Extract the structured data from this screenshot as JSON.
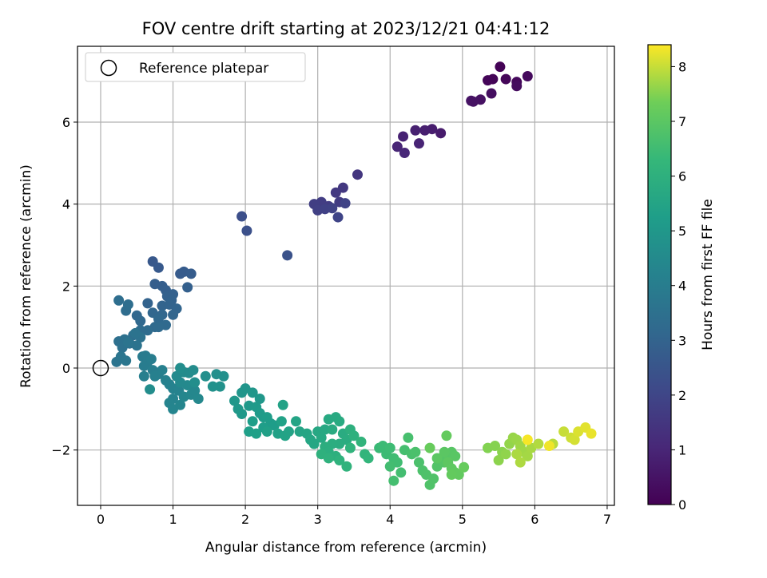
{
  "chart_data": {
    "type": "scatter",
    "title": "FOV centre drift starting at 2023/12/21 04:41:12",
    "xlabel": "Angular distance from reference (arcmin)",
    "ylabel": "Rotation from reference (arcmin)",
    "xlim": [
      -0.32,
      7.1
    ],
    "ylim": [
      -3.35,
      7.85
    ],
    "xticks": [
      0,
      1,
      2,
      3,
      4,
      5,
      6,
      7
    ],
    "yticks": [
      -2,
      0,
      2,
      4,
      6
    ],
    "grid": true,
    "colormap": "viridis",
    "colorbar": {
      "label": "Hours from first FF file",
      "min": 0,
      "max": 8.4,
      "ticks": [
        0,
        1,
        2,
        3,
        4,
        5,
        6,
        7,
        8
      ]
    },
    "legend": {
      "position": "top-left",
      "entries": [
        {
          "label": "Reference platepar",
          "marker": "open-circle"
        }
      ]
    },
    "reference_point": {
      "x": 0,
      "y": 0
    },
    "points": [
      [
        5.52,
        7.35,
        0.05
      ],
      [
        5.42,
        7.05,
        0.1
      ],
      [
        5.6,
        7.05,
        0.15
      ],
      [
        5.35,
        7.02,
        0.12
      ],
      [
        5.75,
        6.98,
        0.2
      ],
      [
        5.9,
        7.12,
        0.25
      ],
      [
        5.75,
        6.88,
        0.3
      ],
      [
        5.4,
        6.7,
        0.35
      ],
      [
        5.25,
        6.55,
        0.42
      ],
      [
        5.12,
        6.52,
        0.5
      ],
      [
        5.15,
        6.5,
        0.45
      ],
      [
        4.7,
        5.73,
        0.7
      ],
      [
        4.58,
        5.83,
        0.75
      ],
      [
        4.48,
        5.8,
        0.8
      ],
      [
        4.35,
        5.8,
        0.85
      ],
      [
        4.18,
        5.65,
        0.9
      ],
      [
        4.4,
        5.48,
        0.95
      ],
      [
        4.1,
        5.4,
        1.0
      ],
      [
        4.2,
        5.25,
        1.05
      ],
      [
        3.55,
        4.72,
        1.5
      ],
      [
        3.35,
        4.4,
        1.55
      ],
      [
        3.25,
        4.28,
        1.6
      ],
      [
        3.3,
        4.05,
        1.65
      ],
      [
        3.15,
        3.95,
        1.7
      ],
      [
        3.05,
        4.05,
        1.72
      ],
      [
        2.95,
        4.0,
        1.75
      ],
      [
        3.0,
        3.85,
        1.8
      ],
      [
        3.1,
        3.88,
        1.85
      ],
      [
        3.2,
        3.9,
        1.88
      ],
      [
        3.38,
        4.02,
        1.9
      ],
      [
        3.28,
        3.68,
        1.95
      ],
      [
        1.95,
        3.7,
        2.3
      ],
      [
        2.02,
        3.35,
        2.35
      ],
      [
        2.58,
        2.75,
        2.4
      ],
      [
        0.72,
        2.6,
        2.6
      ],
      [
        0.8,
        2.45,
        2.65
      ],
      [
        1.1,
        2.3,
        2.7
      ],
      [
        1.15,
        2.35,
        2.72
      ],
      [
        1.25,
        2.3,
        2.75
      ],
      [
        0.75,
        2.05,
        2.8
      ],
      [
        0.85,
        2.0,
        2.82
      ],
      [
        0.9,
        1.9,
        2.85
      ],
      [
        1.2,
        1.97,
        2.87
      ],
      [
        0.92,
        1.75,
        2.9
      ],
      [
        1.0,
        1.8,
        2.92
      ],
      [
        0.98,
        1.65,
        2.95
      ],
      [
        0.65,
        1.58,
        2.97
      ],
      [
        0.85,
        1.52,
        3.0
      ],
      [
        0.95,
        1.55,
        3.02
      ],
      [
        1.05,
        1.45,
        3.05
      ],
      [
        1.0,
        1.3,
        3.08
      ],
      [
        0.85,
        1.3,
        3.1
      ],
      [
        0.72,
        1.35,
        3.12
      ],
      [
        0.5,
        1.28,
        3.15
      ],
      [
        0.55,
        1.15,
        3.18
      ],
      [
        0.8,
        1.2,
        3.2
      ],
      [
        0.9,
        1.05,
        3.22
      ],
      [
        0.75,
        1.0,
        3.25
      ],
      [
        0.8,
        1.0,
        3.28
      ],
      [
        0.65,
        0.92,
        3.3
      ],
      [
        0.55,
        0.92,
        3.32
      ],
      [
        0.35,
        1.4,
        3.35
      ],
      [
        0.25,
        1.65,
        3.38
      ],
      [
        0.38,
        1.55,
        3.4
      ],
      [
        0.45,
        0.8,
        3.42
      ],
      [
        0.4,
        0.6,
        3.45
      ],
      [
        0.25,
        0.65,
        3.48
      ],
      [
        0.33,
        0.7,
        3.5
      ],
      [
        0.3,
        0.5,
        3.52
      ],
      [
        0.55,
        0.75,
        3.55
      ],
      [
        0.5,
        0.55,
        3.58
      ],
      [
        0.48,
        0.85,
        3.6
      ],
      [
        0.38,
        0.62,
        3.62
      ],
      [
        0.22,
        0.15,
        3.65
      ],
      [
        0.28,
        0.28,
        3.68
      ],
      [
        0.35,
        0.18,
        3.7
      ],
      [
        0.58,
        0.28,
        3.9
      ],
      [
        0.62,
        0.3,
        3.92
      ],
      [
        0.65,
        0.15,
        3.95
      ],
      [
        0.6,
        0.05,
        3.97
      ],
      [
        0.7,
        0.22,
        4.0
      ],
      [
        0.72,
        -0.05,
        4.02
      ],
      [
        0.8,
        -0.15,
        4.05
      ],
      [
        0.6,
        -0.2,
        4.07
      ],
      [
        0.75,
        -0.2,
        4.1
      ],
      [
        0.85,
        -0.05,
        4.12
      ],
      [
        0.9,
        -0.3,
        4.15
      ],
      [
        0.95,
        -0.4,
        4.17
      ],
      [
        1.0,
        -0.5,
        4.2
      ],
      [
        1.08,
        -0.55,
        4.22
      ],
      [
        1.0,
        -0.75,
        4.25
      ],
      [
        0.95,
        -0.85,
        4.27
      ],
      [
        1.0,
        -1.0,
        4.3
      ],
      [
        1.1,
        -0.9,
        4.32
      ],
      [
        1.15,
        -0.7,
        4.35
      ],
      [
        1.25,
        -0.65,
        4.37
      ],
      [
        1.3,
        -0.55,
        4.4
      ],
      [
        1.35,
        -0.75,
        4.42
      ],
      [
        1.2,
        -0.42,
        4.45
      ],
      [
        1.1,
        -0.35,
        4.47
      ],
      [
        1.05,
        -0.2,
        4.5
      ],
      [
        1.15,
        -0.1,
        4.52
      ],
      [
        1.22,
        -0.12,
        4.55
      ],
      [
        1.28,
        -0.05,
        4.57
      ],
      [
        1.1,
        0.0,
        4.6
      ],
      [
        0.68,
        -0.52,
        4.62
      ],
      [
        1.3,
        -0.35,
        4.65
      ],
      [
        1.45,
        -0.2,
        4.67
      ],
      [
        1.6,
        -0.15,
        4.7
      ],
      [
        1.7,
        -0.2,
        4.72
      ],
      [
        1.65,
        -0.45,
        4.75
      ],
      [
        1.55,
        -0.45,
        4.77
      ],
      [
        1.95,
        -0.6,
        4.9
      ],
      [
        2.0,
        -0.5,
        4.92
      ],
      [
        2.1,
        -0.6,
        4.95
      ],
      [
        2.2,
        -0.75,
        4.97
      ],
      [
        1.85,
        -0.8,
        5.0
      ],
      [
        1.9,
        -1.0,
        5.02
      ],
      [
        1.95,
        -1.12,
        5.05
      ],
      [
        2.05,
        -0.92,
        5.07
      ],
      [
        2.15,
        -0.95,
        5.1
      ],
      [
        2.2,
        -1.1,
        5.12
      ],
      [
        2.25,
        -1.2,
        5.15
      ],
      [
        2.35,
        -1.35,
        5.17
      ],
      [
        2.3,
        -1.2,
        5.2
      ],
      [
        2.4,
        -1.4,
        5.22
      ],
      [
        2.25,
        -1.45,
        5.25
      ],
      [
        2.1,
        -1.3,
        5.27
      ],
      [
        2.05,
        -1.55,
        5.3
      ],
      [
        2.15,
        -1.6,
        5.32
      ],
      [
        2.3,
        -1.55,
        5.35
      ],
      [
        2.45,
        -1.6,
        5.37
      ],
      [
        2.5,
        -1.3,
        5.4
      ],
      [
        2.52,
        -0.9,
        5.42
      ],
      [
        2.55,
        -1.65,
        5.45
      ],
      [
        2.6,
        -1.55,
        5.47
      ],
      [
        2.7,
        -1.3,
        5.5
      ],
      [
        2.75,
        -1.55,
        5.52
      ],
      [
        2.85,
        -1.6,
        5.55
      ],
      [
        2.9,
        -1.75,
        5.57
      ],
      [
        2.95,
        -1.85,
        5.6
      ],
      [
        3.0,
        -1.55,
        5.62
      ],
      [
        3.05,
        -1.7,
        5.65
      ],
      [
        3.1,
        -1.5,
        5.67
      ],
      [
        3.15,
        -1.25,
        5.7
      ],
      [
        3.25,
        -1.2,
        5.72
      ],
      [
        3.3,
        -1.3,
        5.75
      ],
      [
        3.2,
        -1.5,
        5.77
      ],
      [
        3.35,
        -1.6,
        5.8
      ],
      [
        3.4,
        -1.75,
        5.82
      ],
      [
        3.3,
        -1.85,
        5.85
      ],
      [
        3.2,
        -1.85,
        5.87
      ],
      [
        3.1,
        -1.92,
        5.9
      ],
      [
        3.15,
        -2.05,
        5.92
      ],
      [
        3.25,
        -2.15,
        5.95
      ],
      [
        3.45,
        -1.5,
        5.97
      ],
      [
        3.5,
        -1.65,
        6.0
      ],
      [
        3.05,
        -2.1,
        6.02
      ],
      [
        3.15,
        -2.2,
        6.05
      ],
      [
        3.3,
        -2.25,
        6.07
      ],
      [
        3.4,
        -2.4,
        6.1
      ],
      [
        3.45,
        -1.95,
        6.12
      ],
      [
        3.6,
        -1.8,
        6.15
      ],
      [
        3.65,
        -2.1,
        6.17
      ],
      [
        3.7,
        -2.2,
        6.2
      ],
      [
        3.85,
        -1.95,
        6.4
      ],
      [
        3.9,
        -1.9,
        6.42
      ],
      [
        3.95,
        -2.1,
        6.45
      ],
      [
        4.0,
        -1.95,
        6.47
      ],
      [
        4.05,
        -2.2,
        6.5
      ],
      [
        4.1,
        -2.3,
        6.52
      ],
      [
        4.0,
        -2.4,
        6.55
      ],
      [
        4.15,
        -2.55,
        6.57
      ],
      [
        4.05,
        -2.75,
        6.6
      ],
      [
        4.2,
        -2.0,
        6.62
      ],
      [
        4.25,
        -1.7,
        6.65
      ],
      [
        4.3,
        -2.1,
        6.67
      ],
      [
        4.35,
        -2.05,
        6.7
      ],
      [
        4.4,
        -2.3,
        6.72
      ],
      [
        4.45,
        -2.5,
        6.75
      ],
      [
        4.5,
        -2.6,
        6.77
      ],
      [
        4.55,
        -2.85,
        6.8
      ],
      [
        4.6,
        -2.7,
        6.82
      ],
      [
        4.65,
        -2.4,
        6.85
      ],
      [
        4.7,
        -2.2,
        6.87
      ],
      [
        4.75,
        -2.3,
        6.9
      ],
      [
        4.8,
        -2.1,
        6.92
      ],
      [
        4.85,
        -2.05,
        6.95
      ],
      [
        4.9,
        -2.15,
        6.97
      ],
      [
        4.75,
        -2.05,
        7.0
      ],
      [
        4.65,
        -2.2,
        7.02
      ],
      [
        4.8,
        -2.3,
        7.05
      ],
      [
        4.85,
        -2.45,
        7.07
      ],
      [
        4.9,
        -2.55,
        7.1
      ],
      [
        4.95,
        -2.6,
        7.12
      ],
      [
        4.85,
        -2.6,
        7.15
      ],
      [
        4.78,
        -1.65,
        7.17
      ],
      [
        5.02,
        -2.42,
        7.2
      ],
      [
        4.55,
        -1.95,
        7.22
      ],
      [
        5.35,
        -1.95,
        7.5
      ],
      [
        5.45,
        -1.9,
        7.52
      ],
      [
        5.55,
        -2.05,
        7.55
      ],
      [
        5.5,
        -2.25,
        7.57
      ],
      [
        5.6,
        -2.1,
        7.6
      ],
      [
        5.65,
        -1.85,
        7.62
      ],
      [
        5.7,
        -1.7,
        7.65
      ],
      [
        5.75,
        -1.75,
        7.67
      ],
      [
        5.8,
        -1.9,
        7.7
      ],
      [
        5.85,
        -2.05,
        7.72
      ],
      [
        5.9,
        -2.15,
        7.75
      ],
      [
        5.95,
        -1.95,
        7.77
      ],
      [
        5.75,
        -2.1,
        7.8
      ],
      [
        5.8,
        -2.3,
        7.82
      ],
      [
        6.05,
        -1.85,
        7.85
      ],
      [
        6.25,
        -1.85,
        7.9
      ],
      [
        6.4,
        -1.55,
        8.0
      ],
      [
        6.5,
        -1.7,
        8.05
      ],
      [
        6.55,
        -1.75,
        8.1
      ],
      [
        6.6,
        -1.55,
        8.15
      ],
      [
        6.7,
        -1.45,
        8.2
      ],
      [
        6.78,
        -1.6,
        8.25
      ],
      [
        6.2,
        -1.9,
        8.3
      ],
      [
        5.9,
        -1.75,
        8.35
      ]
    ]
  }
}
